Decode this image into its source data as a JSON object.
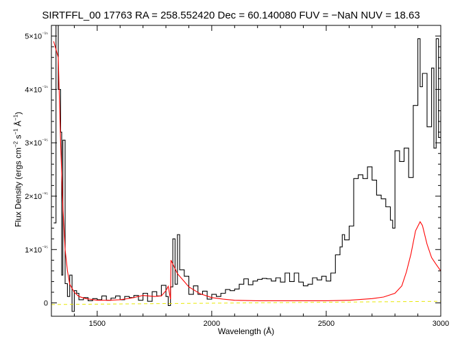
{
  "chart_data": {
    "type": "line",
    "title": "SIRTFFL_00 17763 RA = 258.552420 Dec =  60.140080 FUV =  −NaN NUV = 18.63",
    "xlabel": "Wavelength (Å)",
    "ylabel": "Flux Density (ergs cm⁻² s⁻¹ Å⁻¹)",
    "xlim": [
      1300,
      3000
    ],
    "ylim": [
      -2.5e-16,
      5.2e-15
    ],
    "x_ticks": [
      1500,
      2000,
      2500,
      3000
    ],
    "y_ticks": [
      {
        "value": 0,
        "label": "0"
      },
      {
        "value": 1e-15,
        "label": "1×10⁻¹⁵"
      },
      {
        "value": 2e-15,
        "label": "2×10⁻¹⁵"
      },
      {
        "value": 3e-15,
        "label": "3×10⁻¹⁵"
      },
      {
        "value": 4e-15,
        "label": "4×10⁻¹⁵"
      },
      {
        "value": 5e-15,
        "label": "5×10⁻¹⁵"
      }
    ],
    "grid": false,
    "series": [
      {
        "name": "",
        "color": "#000000",
        "style": "histogram-step",
        "x": [
          1310,
          1320,
          1330,
          1340,
          1345,
          1350,
          1360,
          1370,
          1380,
          1390,
          1400,
          1410,
          1420,
          1440,
          1460,
          1480,
          1500,
          1520,
          1540,
          1560,
          1580,
          1600,
          1620,
          1640,
          1660,
          1680,
          1700,
          1720,
          1740,
          1760,
          1780,
          1800,
          1810,
          1820,
          1830,
          1840,
          1850,
          1860,
          1880,
          1900,
          1920,
          1940,
          1960,
          1980,
          2000,
          2020,
          2040,
          2060,
          2080,
          2100,
          2120,
          2140,
          2160,
          2180,
          2200,
          2220,
          2240,
          2260,
          2280,
          2300,
          2320,
          2340,
          2360,
          2380,
          2400,
          2420,
          2440,
          2460,
          2480,
          2500,
          2520,
          2540,
          2560,
          2570,
          2580,
          2600,
          2620,
          2640,
          2660,
          2680,
          2700,
          2720,
          2740,
          2760,
          2780,
          2790,
          2800,
          2820,
          2840,
          2860,
          2880,
          2900,
          2910,
          2920,
          2940,
          2960,
          2970,
          2980,
          2990,
          3000
        ],
        "y": [
          1.5e-15,
          5.2e-15,
          4e-15,
          3.2e-15,
          5.2e-16,
          3.05e-15,
          3.6e-16,
          1.2e-16,
          5.2e-16,
          -1.6e-16,
          2.3e-16,
          1.8e-16,
          6e-17,
          1e-16,
          4e-17,
          8e-17,
          6e-17,
          1.3e-16,
          5e-17,
          9e-17,
          1.3e-16,
          6e-17,
          1.2e-16,
          1e-16,
          1.4e-16,
          5e-17,
          1.8e-16,
          3e-17,
          2.1e-16,
          1.3e-16,
          3.3e-16,
          1.2e-16,
          -5e-17,
          3e-16,
          1.2e-15,
          3.5e-16,
          1.28e-15,
          6.2e-16,
          5e-16,
          1.6e-16,
          3.2e-16,
          1.6e-16,
          2.2e-16,
          7e-17,
          1.6e-16,
          1.2e-16,
          1.8e-16,
          2.5e-16,
          2.3e-16,
          2.6e-16,
          3.5e-16,
          4.5e-16,
          3.4e-16,
          4.1e-16,
          4.4e-16,
          4.6e-16,
          4.5e-16,
          4.1e-16,
          4.7e-16,
          3.9e-16,
          5.6e-16,
          4e-16,
          5.6e-16,
          3.9e-16,
          3.2e-16,
          3.5e-16,
          4.7e-16,
          4.3e-16,
          5e-16,
          4.1e-16,
          5.6e-16,
          9e-16,
          1.05e-15,
          1.28e-15,
          1.18e-15,
          1.44e-15,
          2.33e-15,
          2.4e-15,
          2.33e-15,
          2.55e-15,
          2.3e-15,
          2.02e-15,
          1.95e-15,
          1.8e-15,
          1.55e-15,
          1.4e-15,
          2.85e-15,
          2.65e-15,
          2.9e-15,
          2.35e-15,
          3.7e-15,
          4.95e-15,
          4.05e-15,
          4.3e-15,
          3.3e-15,
          4.4e-15,
          2.9e-15,
          4.95e-15,
          3.1e-15,
          3.5e-15
        ]
      },
      {
        "name": "",
        "color": "#ff0000",
        "style": "smooth",
        "x": [
          1310,
          1330,
          1340,
          1350,
          1360,
          1370,
          1380,
          1400,
          1420,
          1450,
          1500,
          1550,
          1600,
          1650,
          1700,
          1750,
          1780,
          1800,
          1810,
          1820,
          1822,
          1830,
          1850,
          1880,
          1900,
          1950,
          2000,
          2050,
          2100,
          2200,
          2300,
          2400,
          2500,
          2600,
          2700,
          2750,
          2800,
          2830,
          2850,
          2870,
          2890,
          2910,
          2920,
          2940,
          2960,
          2980,
          3000
        ],
        "y": [
          4.9e-15,
          4.6e-15,
          3e-15,
          1.8e-15,
          1e-15,
          6e-16,
          3.5e-16,
          2e-16,
          1.2e-16,
          8e-17,
          5e-17,
          5e-17,
          6e-17,
          9e-17,
          1.4e-16,
          1.2e-16,
          1.3e-16,
          2.3e-16,
          3.1e-16,
          7e-17,
          8e-16,
          7.3e-16,
          5.5e-16,
          4e-16,
          3e-16,
          1.7e-16,
          1e-16,
          7e-17,
          5e-17,
          4e-17,
          4e-17,
          4e-17,
          4e-17,
          5e-17,
          8e-17,
          1.1e-16,
          1.8e-16,
          3.2e-16,
          5.8e-16,
          9.2e-16,
          1.35e-15,
          1.52e-15,
          1.45e-15,
          1.1e-15,
          8.5e-16,
          7.2e-16,
          6e-16
        ]
      },
      {
        "name": "",
        "color": "#e8e800",
        "style": "dashed",
        "x": [
          1300,
          3000
        ],
        "y": [
          -3e-17,
          3e-17
        ]
      }
    ]
  }
}
